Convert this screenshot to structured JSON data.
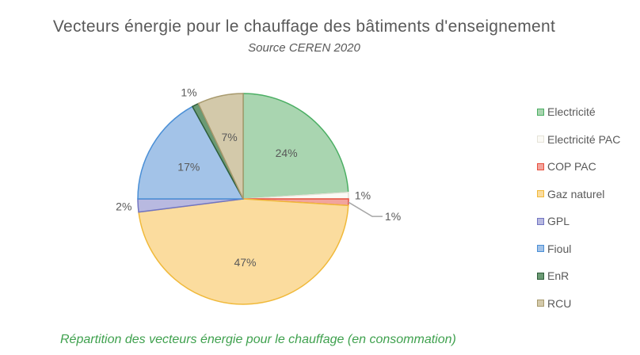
{
  "chart_data": {
    "type": "pie",
    "title": "Vecteurs énergie pour le chauffage des bâtiments d'enseignement",
    "subtitle": "Source CEREN 2020",
    "caption": "Répartition des vecteurs énergie pour le chauffage (en consommation)",
    "legend_position": "right",
    "unit": "%",
    "slices": [
      {
        "name": "Electricité",
        "value": 24,
        "label": "24%",
        "fill": "#a9d5b0",
        "stroke": "#4caf64"
      },
      {
        "name": "Electricité PAC",
        "value": 1,
        "label": "1%",
        "fill": "#fbfaf5",
        "stroke": "#e5e3d8"
      },
      {
        "name": "COP PAC",
        "value": 1,
        "label": "1%",
        "fill": "#f2a49c",
        "stroke": "#e8503f"
      },
      {
        "name": "Gaz naturel",
        "value": 47,
        "label": "47%",
        "fill": "#fbdc9e",
        "stroke": "#f0b93a"
      },
      {
        "name": "GPL",
        "value": 2,
        "label": "2%",
        "fill": "#b8b9e0",
        "stroke": "#7175c2"
      },
      {
        "name": "Fioul",
        "value": 17,
        "label": "17%",
        "fill": "#a3c3e8",
        "stroke": "#4a8fd6"
      },
      {
        "name": "EnR",
        "value": 1,
        "label": "1%",
        "fill": "#6b9a74",
        "stroke": "#2f5e3a"
      },
      {
        "name": "RCU",
        "value": 7,
        "label": "7%",
        "fill": "#d3c9aa",
        "stroke": "#a89a6e"
      }
    ]
  }
}
